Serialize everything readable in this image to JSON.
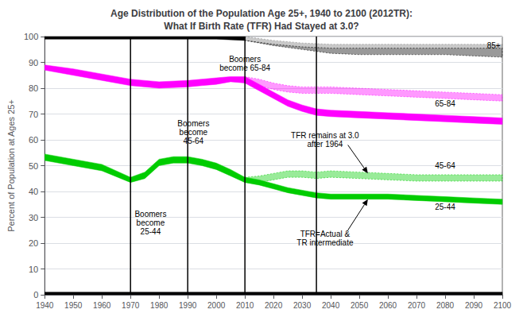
{
  "chart_data": {
    "type": "band",
    "title": "Age Distribution of the Population Age 25+, 1940 to 2100 (2012TR):",
    "subtitle": "What If Birth Rate (TFR) Had Stayed at 3.0?",
    "ylabel": "Percent of Population at Ages 25+",
    "xlim": [
      1940,
      2100
    ],
    "ylim": [
      0,
      100
    ],
    "xticks": [
      1940,
      1950,
      1960,
      1970,
      1980,
      1990,
      2000,
      2010,
      2020,
      2030,
      2040,
      2050,
      2060,
      2070,
      2080,
      2090,
      2100
    ],
    "yticks": [
      0,
      10,
      20,
      30,
      40,
      50,
      60,
      70,
      80,
      90,
      100
    ],
    "grid": true,
    "series": [
      {
        "color": "#000000",
        "line_style": "solid",
        "upper": {
          "x": [
            1940,
            1950,
            1960,
            1970,
            1980,
            1990,
            2000,
            2010
          ],
          "y": [
            100.0,
            100.0,
            100.0,
            100.0,
            100.0,
            100.0,
            100.0,
            100.0
          ]
        },
        "lower": {
          "x": [
            1940,
            1950,
            1960,
            1970,
            1980,
            1990,
            2000,
            2010
          ],
          "y": [
            99.0,
            99.0,
            99.0,
            99.0,
            99.0,
            99.0,
            99.0,
            98.5
          ]
        }
      },
      {
        "color": "#777777",
        "line_style": "dotted",
        "upper": {
          "x": [
            2010,
            2020,
            2030,
            2040,
            2050,
            2060,
            2070,
            2080,
            2090,
            2100
          ],
          "y": [
            100.0,
            98.5,
            97.5,
            97.0,
            97.0,
            97.0,
            97.0,
            97.0,
            97.0,
            97.0
          ]
        },
        "lower": {
          "x": [
            2010,
            2020,
            2030,
            2040,
            2050,
            2060,
            2070,
            2080,
            2090,
            2100
          ],
          "y": [
            98.5,
            97.0,
            96.0,
            95.5,
            95.5,
            95.5,
            95.5,
            95.5,
            95.5,
            95.5
          ]
        }
      },
      {
        "color": "#000000",
        "line_style": "dotted",
        "upper": {
          "x": [
            2010,
            2020,
            2030,
            2040,
            2050,
            2060,
            2070,
            2080,
            2090,
            2100
          ],
          "y": [
            98.5,
            97.0,
            96.0,
            95.5,
            95.5,
            95.5,
            95.5,
            95.5,
            95.5,
            95.5
          ]
        },
        "lower": {
          "x": [
            2010,
            2020,
            2030,
            2040,
            2050,
            2060,
            2070,
            2080,
            2090,
            2100
          ],
          "y": [
            98.5,
            96.5,
            95.0,
            93.5,
            93.0,
            93.0,
            93.0,
            93.0,
            92.5,
            92.0
          ]
        }
      },
      {
        "color": "#FF00FF",
        "line_style": "solid",
        "upper": {
          "x": [
            1940,
            1950,
            1960,
            1970,
            1980,
            1990,
            2000,
            2005,
            2010
          ],
          "y": [
            89.0,
            87.5,
            85.5,
            83.5,
            82.5,
            83.0,
            84.0,
            84.5,
            84.5
          ]
        },
        "lower": {
          "x": [
            1940,
            1950,
            1960,
            1970,
            1980,
            1990,
            2000,
            2005,
            2010
          ],
          "y": [
            87.0,
            85.0,
            83.0,
            81.0,
            80.0,
            80.5,
            81.5,
            82.5,
            82.0
          ]
        }
      },
      {
        "color": "#FF00FF",
        "line_style": "dotted",
        "upper": {
          "x": [
            2010,
            2015,
            2020,
            2025,
            2030,
            2035,
            2040,
            2050,
            2060,
            2070,
            2080,
            2090,
            2100
          ],
          "y": [
            84.5,
            83.5,
            82.0,
            81.0,
            80.5,
            80.5,
            80.5,
            80.0,
            79.5,
            79.0,
            78.5,
            78.0,
            77.5
          ]
        },
        "lower": {
          "x": [
            2010,
            2015,
            2020,
            2025,
            2030,
            2035,
            2040,
            2050,
            2060,
            2070,
            2080,
            2090,
            2100
          ],
          "y": [
            82.0,
            81.0,
            79.5,
            78.5,
            78.0,
            78.0,
            78.0,
            77.5,
            77.0,
            76.5,
            76.0,
            75.5,
            75.0
          ]
        }
      },
      {
        "color": "#FF00FF",
        "line_style": "solid",
        "upper": {
          "x": [
            2010,
            2015,
            2020,
            2025,
            2030,
            2035,
            2040,
            2050,
            2060,
            2070,
            2080,
            2090,
            2100
          ],
          "y": [
            84.5,
            81.5,
            78.5,
            75.5,
            73.5,
            72.0,
            71.5,
            71.0,
            70.5,
            70.0,
            69.5,
            69.0,
            68.5
          ]
        },
        "lower": {
          "x": [
            2010,
            2015,
            2020,
            2025,
            2030,
            2035,
            2040,
            2050,
            2060,
            2070,
            2080,
            2090,
            2100
          ],
          "y": [
            82.0,
            79.0,
            76.0,
            73.0,
            71.0,
            69.5,
            69.0,
            68.5,
            68.0,
            67.5,
            67.0,
            66.5,
            66.0
          ]
        }
      },
      {
        "color": "#00CC00",
        "line_style": "solid",
        "upper": {
          "x": [
            1940,
            1950,
            1960,
            1970,
            1975,
            1980,
            1985,
            1990,
            1995,
            2000,
            2005,
            2010
          ],
          "y": [
            54.5,
            52.5,
            50.5,
            45.5,
            47.5,
            52.5,
            53.5,
            53.5,
            52.5,
            51.0,
            48.5,
            45.5
          ]
        },
        "lower": {
          "x": [
            1940,
            1950,
            1960,
            1970,
            1975,
            1980,
            1985,
            1990,
            1995,
            2000,
            2005,
            2010
          ],
          "y": [
            52.0,
            50.0,
            48.0,
            43.5,
            45.0,
            50.0,
            51.0,
            51.0,
            50.0,
            48.5,
            46.0,
            43.5
          ]
        }
      },
      {
        "color": "#00CC00",
        "line_style": "dotted",
        "upper": {
          "x": [
            2010,
            2015,
            2020,
            2025,
            2030,
            2035,
            2040,
            2050,
            2060,
            2070,
            2080,
            2090,
            2100
          ],
          "y": [
            45.5,
            46.0,
            47.0,
            48.0,
            48.0,
            47.5,
            48.0,
            47.5,
            47.0,
            46.5,
            46.5,
            46.5,
            46.5
          ]
        },
        "lower": {
          "x": [
            2010,
            2015,
            2020,
            2025,
            2030,
            2035,
            2040,
            2050,
            2060,
            2070,
            2080,
            2090,
            2100
          ],
          "y": [
            43.5,
            43.5,
            44.5,
            45.5,
            45.5,
            45.0,
            45.5,
            45.0,
            44.5,
            44.0,
            44.0,
            44.0,
            44.0
          ]
        }
      },
      {
        "color": "#00CC00",
        "line_style": "solid",
        "upper": {
          "x": [
            2010,
            2015,
            2020,
            2025,
            2030,
            2035,
            2040,
            2050,
            2060,
            2070,
            2080,
            2090,
            2100
          ],
          "y": [
            45.5,
            44.5,
            43.0,
            41.5,
            40.5,
            39.5,
            39.0,
            39.0,
            39.0,
            38.5,
            38.0,
            37.5,
            37.0
          ]
        },
        "lower": {
          "x": [
            2010,
            2015,
            2020,
            2025,
            2030,
            2035,
            2040,
            2050,
            2060,
            2070,
            2080,
            2090,
            2100
          ],
          "y": [
            43.5,
            42.5,
            41.0,
            39.5,
            38.5,
            37.5,
            37.0,
            37.0,
            37.0,
            36.5,
            36.0,
            35.5,
            35.0
          ]
        }
      },
      {
        "color": "#000000",
        "line_style": "solid",
        "upper": {
          "x": [
            1940,
            2100
          ],
          "y": [
            1.0,
            1.0
          ]
        },
        "lower": {
          "x": [
            1940,
            2100
          ],
          "y": [
            0.0,
            0.0
          ]
        }
      }
    ],
    "vlines": [
      1970,
      1990,
      2010,
      2035
    ],
    "annotations": [
      {
        "text": "Boomers\nbecome\n25-44",
        "x": 1977,
        "y": 28
      },
      {
        "text": "Boomers\nbecome\n45-64",
        "x": 1992,
        "y": 63
      },
      {
        "text": "Boomers\nbecome 65-84",
        "x": 2010,
        "y": 89.5
      },
      {
        "text": "TFR remains at 3.0\nafter 1964",
        "x": 2038,
        "y": 60
      },
      {
        "text": "TFR=Actual &\nTR intermediate",
        "x": 2038,
        "y": 22
      },
      {
        "text": "85+",
        "x": 2097,
        "y": 96.5
      },
      {
        "text": "65-84",
        "x": 2080,
        "y": 74
      },
      {
        "text": "45-64",
        "x": 2080,
        "y": 50
      },
      {
        "text": "25-44",
        "x": 2080,
        "y": 34
      }
    ],
    "arrows": [
      {
        "x1": 2046,
        "y1": 58,
        "x2": 2053,
        "y2": 47
      },
      {
        "x1": 2046,
        "y1": 25,
        "x2": 2053,
        "y2": 37
      }
    ]
  }
}
